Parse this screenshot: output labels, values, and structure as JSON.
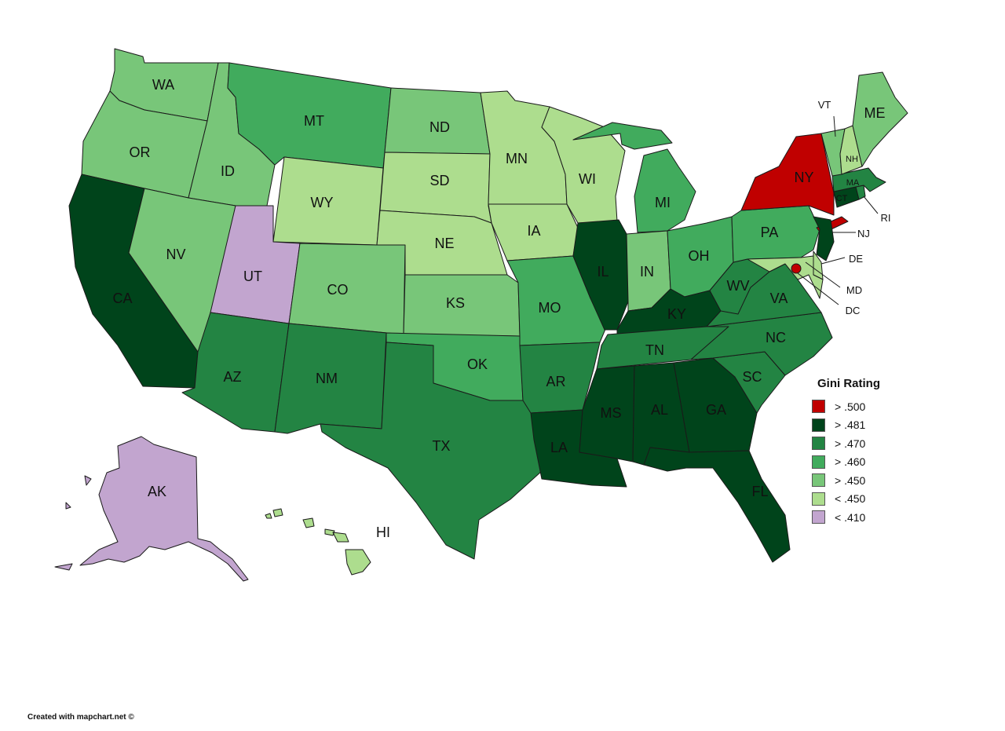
{
  "legend": {
    "title": "Gini Rating",
    "items": [
      {
        "label": "> .500",
        "color": "#c00000"
      },
      {
        "label": "> .481",
        "color": "#00441b"
      },
      {
        "label": "> .470",
        "color": "#238443"
      },
      {
        "label": "> .460",
        "color": "#41ab5d"
      },
      {
        "label": "> .450",
        "color": "#78c679"
      },
      {
        "label": "< .450",
        "color": "#addd8e"
      },
      {
        "label": "< .410",
        "color": "#c2a5cf"
      }
    ]
  },
  "states": [
    {
      "id": "WA",
      "label": "WA",
      "tier": 4
    },
    {
      "id": "OR",
      "label": "OR",
      "tier": 4
    },
    {
      "id": "CA",
      "label": "CA",
      "tier": 1
    },
    {
      "id": "ID",
      "label": "ID",
      "tier": 4
    },
    {
      "id": "NV",
      "label": "NV",
      "tier": 4
    },
    {
      "id": "MT",
      "label": "MT",
      "tier": 3
    },
    {
      "id": "WY",
      "label": "WY",
      "tier": 5
    },
    {
      "id": "UT",
      "label": "UT",
      "tier": 6
    },
    {
      "id": "AZ",
      "label": "AZ",
      "tier": 2
    },
    {
      "id": "CO",
      "label": "CO",
      "tier": 4
    },
    {
      "id": "NM",
      "label": "NM",
      "tier": 2
    },
    {
      "id": "ND",
      "label": "ND",
      "tier": 4
    },
    {
      "id": "SD",
      "label": "SD",
      "tier": 5
    },
    {
      "id": "NE",
      "label": "NE",
      "tier": 5
    },
    {
      "id": "KS",
      "label": "KS",
      "tier": 4
    },
    {
      "id": "OK",
      "label": "OK",
      "tier": 3
    },
    {
      "id": "TX",
      "label": "TX",
      "tier": 2
    },
    {
      "id": "MN",
      "label": "MN",
      "tier": 5
    },
    {
      "id": "IA",
      "label": "IA",
      "tier": 5
    },
    {
      "id": "MO",
      "label": "MO",
      "tier": 3
    },
    {
      "id": "AR",
      "label": "AR",
      "tier": 2
    },
    {
      "id": "LA",
      "label": "LA",
      "tier": 1
    },
    {
      "id": "WI",
      "label": "WI",
      "tier": 5
    },
    {
      "id": "IL",
      "label": "IL",
      "tier": 1
    },
    {
      "id": "MI",
      "label": "MI",
      "tier": 3
    },
    {
      "id": "IN",
      "label": "IN",
      "tier": 4
    },
    {
      "id": "OH",
      "label": "OH",
      "tier": 3
    },
    {
      "id": "KY",
      "label": "KY",
      "tier": 1
    },
    {
      "id": "TN",
      "label": "TN",
      "tier": 2
    },
    {
      "id": "MS",
      "label": "MS",
      "tier": 1
    },
    {
      "id": "AL",
      "label": "AL",
      "tier": 1
    },
    {
      "id": "GA",
      "label": "GA",
      "tier": 1
    },
    {
      "id": "FL",
      "label": "FL",
      "tier": 1
    },
    {
      "id": "SC",
      "label": "SC",
      "tier": 2
    },
    {
      "id": "NC",
      "label": "NC",
      "tier": 2
    },
    {
      "id": "VA",
      "label": "VA",
      "tier": 2
    },
    {
      "id": "WV",
      "label": "WV",
      "tier": 2
    },
    {
      "id": "PA",
      "label": "PA",
      "tier": 3
    },
    {
      "id": "NY",
      "label": "NY",
      "tier": 0
    },
    {
      "id": "NJ",
      "label": "NJ",
      "tier": 1
    },
    {
      "id": "DE",
      "label": "DE",
      "tier": 5
    },
    {
      "id": "MD",
      "label": "MD",
      "tier": 5
    },
    {
      "id": "DC",
      "label": "DC",
      "tier": 0
    },
    {
      "id": "CT",
      "label": "CT",
      "tier": 1
    },
    {
      "id": "RI",
      "label": "RI",
      "tier": 2
    },
    {
      "id": "MA",
      "label": "MA",
      "tier": 2
    },
    {
      "id": "VT",
      "label": "VT",
      "tier": 4
    },
    {
      "id": "NH",
      "label": "NH",
      "tier": 5
    },
    {
      "id": "ME",
      "label": "ME",
      "tier": 4
    },
    {
      "id": "AK",
      "label": "AK",
      "tier": 6
    },
    {
      "id": "HI",
      "label": "HI",
      "tier": 5
    }
  ],
  "credit": "Created with mapchart.net ©"
}
